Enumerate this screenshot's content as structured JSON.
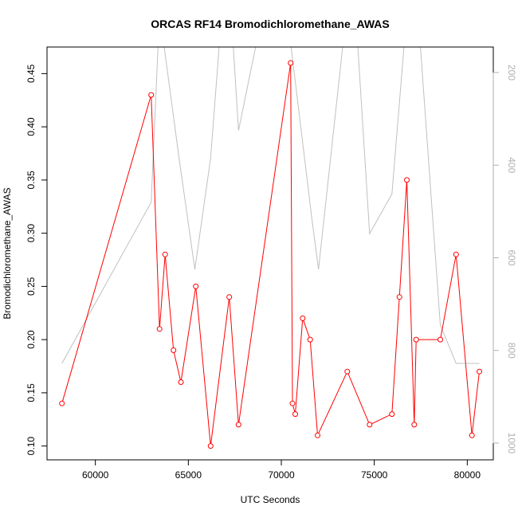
{
  "chart_data": {
    "type": "line",
    "title": "ORCAS RF14 Bromodichloromethane_AWAS",
    "xlabel": "UTC Seconds",
    "ylabel": "Bromodichloromethane_AWAS",
    "xlim": [
      57400,
      81400
    ],
    "ylim": [
      0.087,
      0.475
    ],
    "x_ticks": [
      60000,
      65000,
      70000,
      75000,
      80000
    ],
    "y_ticks": [
      0.1,
      0.15,
      0.2,
      0.25,
      0.3,
      0.35,
      0.4,
      0.45
    ],
    "y2_ticks": [
      200,
      400,
      600,
      800,
      1000
    ],
    "y2_reversed": true,
    "grid": false,
    "series": [
      {
        "color": "#ff0000",
        "marker": "open-circle",
        "axis": "left",
        "points": [
          [
            58200,
            0.14
          ],
          [
            63000,
            0.43
          ],
          [
            63450,
            0.21
          ],
          [
            63750,
            0.28
          ],
          [
            64200,
            0.19
          ],
          [
            64600,
            0.16
          ],
          [
            65400,
            0.25
          ],
          [
            66200,
            0.1
          ],
          [
            67200,
            0.24
          ],
          [
            67700,
            0.12
          ],
          [
            70500,
            0.46
          ],
          [
            70600,
            0.14
          ],
          [
            70750,
            0.13
          ],
          [
            71150,
            0.22
          ],
          [
            71550,
            0.2
          ],
          [
            71950,
            0.11
          ],
          [
            73550,
            0.17
          ],
          [
            74750,
            0.12
          ],
          [
            75950,
            0.13
          ],
          [
            76350,
            0.24
          ],
          [
            76750,
            0.35
          ],
          [
            77150,
            0.12
          ],
          [
            77250,
            0.2
          ],
          [
            78550,
            0.2
          ],
          [
            79400,
            0.28
          ],
          [
            80250,
            0.11
          ],
          [
            80650,
            0.17
          ]
        ]
      },
      {
        "color": "#c0c0c0",
        "marker": "none",
        "axis": "right",
        "points": [
          [
            58200,
            828
          ],
          [
            63000,
            480
          ],
          [
            63450,
            70
          ],
          [
            64500,
            385
          ],
          [
            65350,
            625
          ],
          [
            66200,
            385
          ],
          [
            66800,
            70
          ],
          [
            67300,
            70
          ],
          [
            67700,
            325
          ],
          [
            69000,
            70
          ],
          [
            70300,
            70
          ],
          [
            71650,
            518
          ],
          [
            72000,
            625
          ],
          [
            73500,
            70
          ],
          [
            74000,
            70
          ],
          [
            74750,
            548
          ],
          [
            75950,
            462
          ],
          [
            76750,
            70
          ],
          [
            77350,
            70
          ],
          [
            78550,
            745
          ],
          [
            79400,
            828
          ],
          [
            80650,
            828
          ]
        ]
      }
    ]
  }
}
